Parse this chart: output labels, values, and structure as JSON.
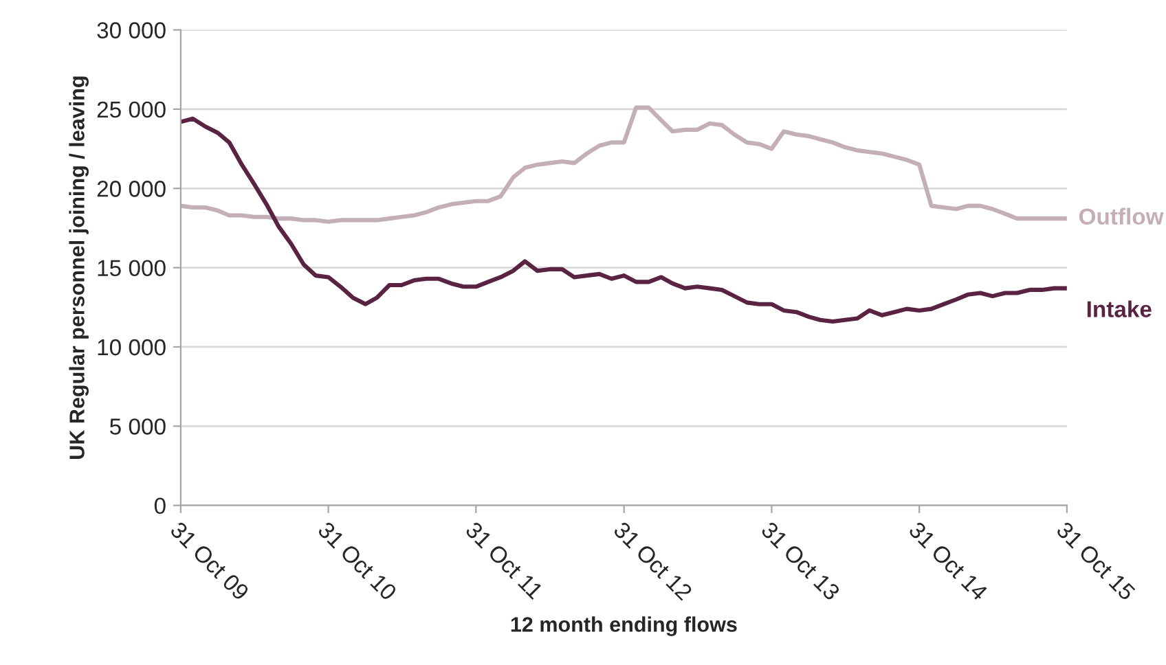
{
  "chart_data": {
    "type": "line",
    "xlabel": "12 month ending flows",
    "ylabel": "UK Regular personnel joining / leaving",
    "x": [
      "2009-10-31",
      "2009-11-30",
      "2009-12-31",
      "2010-01-31",
      "2010-02-28",
      "2010-03-31",
      "2010-04-30",
      "2010-05-31",
      "2010-06-30",
      "2010-07-31",
      "2010-08-31",
      "2010-09-30",
      "2010-10-31",
      "2010-11-30",
      "2010-12-31",
      "2011-01-31",
      "2011-02-28",
      "2011-03-31",
      "2011-04-30",
      "2011-05-31",
      "2011-06-30",
      "2011-07-31",
      "2011-08-31",
      "2011-09-30",
      "2011-10-31",
      "2011-11-30",
      "2011-12-31",
      "2012-01-31",
      "2012-02-29",
      "2012-03-31",
      "2012-04-30",
      "2012-05-31",
      "2012-06-30",
      "2012-07-31",
      "2012-08-31",
      "2012-09-30",
      "2012-10-31",
      "2012-11-30",
      "2012-12-31",
      "2013-01-31",
      "2013-02-28",
      "2013-03-31",
      "2013-04-30",
      "2013-05-31",
      "2013-06-30",
      "2013-07-31",
      "2013-08-31",
      "2013-09-30",
      "2013-10-31",
      "2013-11-30",
      "2013-12-31",
      "2014-01-31",
      "2014-02-28",
      "2014-03-31",
      "2014-04-30",
      "2014-05-31",
      "2014-06-30",
      "2014-07-31",
      "2014-08-31",
      "2014-09-30",
      "2014-10-31",
      "2014-11-30",
      "2014-12-31",
      "2015-01-31",
      "2015-02-28",
      "2015-03-31",
      "2015-04-30",
      "2015-05-31",
      "2015-06-30",
      "2015-07-31",
      "2015-08-31",
      "2015-09-30",
      "2015-10-31"
    ],
    "series": [
      {
        "name": "Outflow",
        "color": "#c4aeb8",
        "values": [
          18900,
          18800,
          18800,
          18600,
          18300,
          18300,
          18200,
          18200,
          18100,
          18100,
          18000,
          18000,
          17900,
          18000,
          18000,
          18000,
          18000,
          18100,
          18200,
          18300,
          18500,
          18800,
          19000,
          19100,
          19200,
          19200,
          19500,
          20700,
          21300,
          21500,
          21600,
          21700,
          21600,
          22200,
          22700,
          22900,
          22900,
          25100,
          25100,
          24300,
          23600,
          23700,
          23700,
          24100,
          24000,
          23400,
          22900,
          22800,
          22500,
          23600,
          23400,
          23300,
          23100,
          22900,
          22600,
          22400,
          22300,
          22200,
          22000,
          21800,
          21500,
          18900,
          18800,
          18700,
          18900,
          18900,
          18700,
          18400,
          18100,
          18100,
          18100,
          18100,
          18100
        ]
      },
      {
        "name": "Intake",
        "color": "#5a2342",
        "values": [
          24200,
          24400,
          23900,
          23500,
          22900,
          21500,
          20300,
          19000,
          17600,
          16500,
          15200,
          14500,
          14400,
          13800,
          13100,
          12700,
          13100,
          13900,
          13900,
          14200,
          14300,
          14300,
          14000,
          13800,
          13800,
          14100,
          14400,
          14800,
          15400,
          14800,
          14900,
          14900,
          14400,
          14500,
          14600,
          14300,
          14500,
          14100,
          14100,
          14400,
          14000,
          13700,
          13800,
          13700,
          13600,
          13200,
          12800,
          12700,
          12700,
          12300,
          12200,
          11900,
          11700,
          11600,
          11700,
          11800,
          12300,
          12000,
          12200,
          12400,
          12300,
          12400,
          12700,
          13000,
          13300,
          13400,
          13200,
          13400,
          13400,
          13600,
          13600,
          13700,
          13700
        ]
      }
    ],
    "xlim": [
      "2009-10-31",
      "2015-10-31"
    ],
    "xticks": [
      {
        "value": "2009-10-31",
        "label": "31 Oct 09"
      },
      {
        "value": "2010-10-31",
        "label": "31 Oct 10"
      },
      {
        "value": "2011-10-31",
        "label": "31 Oct 11"
      },
      {
        "value": "2012-10-31",
        "label": "31 Oct 12"
      },
      {
        "value": "2013-10-31",
        "label": "31 Oct 13"
      },
      {
        "value": "2014-10-31",
        "label": "31 Oct 14"
      },
      {
        "value": "2015-10-31",
        "label": "31 Oct 15"
      }
    ],
    "ylim": [
      0,
      30000
    ],
    "yticks": [
      {
        "value": 0,
        "label": "0"
      },
      {
        "value": 5000,
        "label": "5 000"
      },
      {
        "value": 10000,
        "label": "10 000"
      },
      {
        "value": 15000,
        "label": "15 000"
      },
      {
        "value": 20000,
        "label": "20 000"
      },
      {
        "value": 25000,
        "label": "25 000"
      },
      {
        "value": 30000,
        "label": "30 000"
      }
    ],
    "grid": "y",
    "legend": false,
    "marker": "none",
    "line_style": "solid"
  }
}
